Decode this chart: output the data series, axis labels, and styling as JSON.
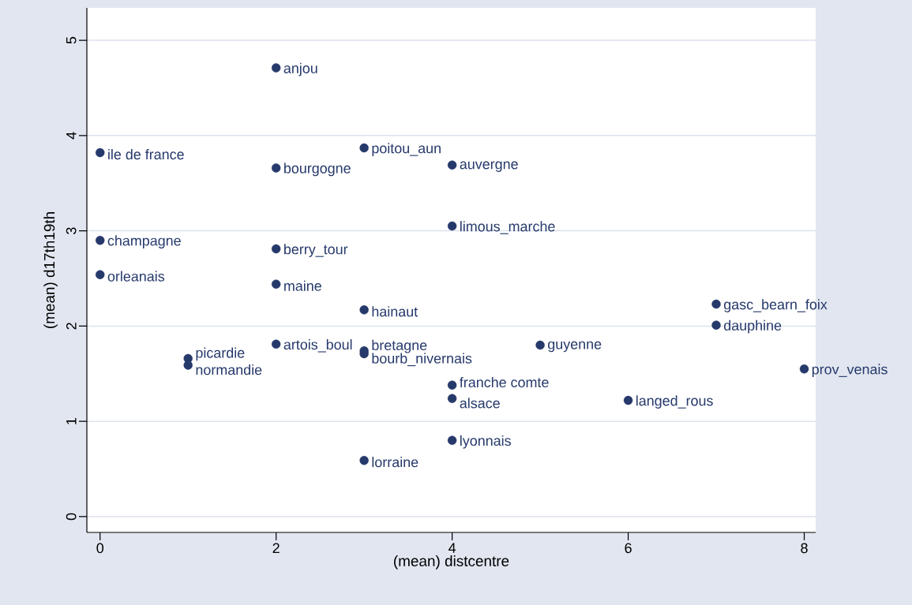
{
  "chart_data": {
    "type": "scatter",
    "xlabel": "(mean) distcentre",
    "ylabel": "(mean) d17th19th",
    "xlim": [
      -0.15,
      8.13
    ],
    "ylim": [
      -0.166,
      5.34
    ],
    "xticks": [
      0,
      2,
      4,
      6,
      8
    ],
    "yticks": [
      0,
      1,
      2,
      3,
      4,
      5
    ],
    "grid": "y",
    "marker": "circle",
    "series": [
      {
        "color": "#26396b",
        "x": [
          2,
          0,
          3,
          2,
          4,
          4,
          0,
          2,
          0,
          2,
          3,
          7,
          7,
          2,
          1,
          1,
          3,
          3,
          5,
          8,
          4,
          4,
          6,
          4,
          3
        ],
        "values": [
          4.71,
          3.82,
          3.87,
          3.66,
          3.69,
          3.05,
          2.9,
          2.81,
          2.54,
          2.44,
          2.17,
          2.23,
          2.01,
          1.81,
          1.66,
          1.59,
          1.74,
          1.71,
          1.8,
          1.55,
          1.38,
          1.24,
          1.22,
          0.8,
          0.59
        ]
      }
    ],
    "annotations": [
      {
        "text": "anjou",
        "x": 2,
        "y": 4.71
      },
      {
        "text": "ile de france",
        "x": 0,
        "y": 3.82
      },
      {
        "text": "poitou_aun",
        "x": 3,
        "y": 3.87
      },
      {
        "text": "bourgogne",
        "x": 2,
        "y": 3.66
      },
      {
        "text": "auvergne",
        "x": 4,
        "y": 3.69
      },
      {
        "text": "limous_marche",
        "x": 4,
        "y": 3.05
      },
      {
        "text": "champagne",
        "x": 0,
        "y": 2.9
      },
      {
        "text": "berry_tour",
        "x": 2,
        "y": 2.81
      },
      {
        "text": "orleanais",
        "x": 0,
        "y": 2.54
      },
      {
        "text": "maine",
        "x": 2,
        "y": 2.44
      },
      {
        "text": "hainaut",
        "x": 3,
        "y": 2.17
      },
      {
        "text": "gasc_bearn_foix",
        "x": 7,
        "y": 2.23
      },
      {
        "text": "dauphine",
        "x": 7,
        "y": 2.01
      },
      {
        "text": "artois_boul",
        "x": 2,
        "y": 1.81
      },
      {
        "text": "picardie",
        "x": 1,
        "y": 1.66
      },
      {
        "text": "normandie",
        "x": 1,
        "y": 1.59
      },
      {
        "text": "bretagne",
        "x": 3,
        "y": 1.74
      },
      {
        "text": "bourb_nivernais",
        "x": 3,
        "y": 1.71
      },
      {
        "text": "guyenne",
        "x": 5,
        "y": 1.8
      },
      {
        "text": "prov_venais",
        "x": 8,
        "y": 1.55
      },
      {
        "text": "franche comte",
        "x": 4,
        "y": 1.38
      },
      {
        "text": "alsace",
        "x": 4,
        "y": 1.24
      },
      {
        "text": "langed_rous",
        "x": 6,
        "y": 1.22
      },
      {
        "text": "lyonnais",
        "x": 4,
        "y": 0.8
      },
      {
        "text": "lorraine",
        "x": 3,
        "y": 0.59
      }
    ]
  }
}
